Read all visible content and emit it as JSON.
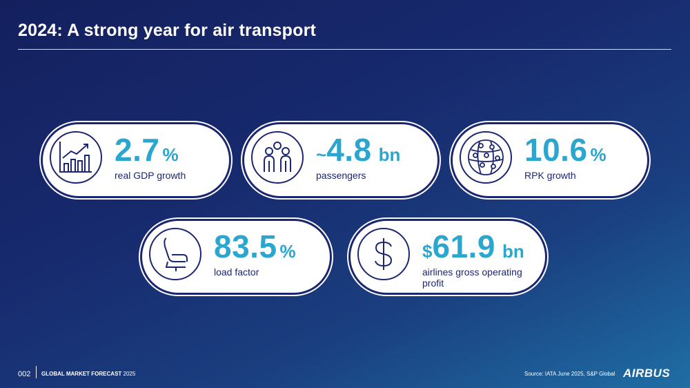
{
  "title": "2024: A strong year for air transport",
  "stats": [
    {
      "prefix": "",
      "value": "2.7",
      "unit": "%",
      "label": "real GDP growth",
      "icon": "growth-chart-icon"
    },
    {
      "prefix": "~",
      "value": "4.8",
      "unit": "bn",
      "label": "passengers",
      "icon": "people-icon"
    },
    {
      "prefix": "",
      "value": "10.6",
      "unit": "%",
      "label": "RPK growth",
      "icon": "network-globe-icon"
    },
    {
      "prefix": "",
      "value": "83.5",
      "unit": "%",
      "label": "load factor",
      "icon": "seat-icon"
    },
    {
      "prefix": "$",
      "value": "61.9",
      "unit": "bn",
      "label": "airlines gross operating profit",
      "icon": "dollar-icon"
    }
  ],
  "footer": {
    "page": "002",
    "series": "GLOBAL MARKET FORECAST",
    "year": "2025",
    "source": "Source: IATA June 2025, S&P Global",
    "logo": "AIRBUS"
  },
  "colors": {
    "accent": "#2aa6cf",
    "navy": "#1b2670"
  }
}
